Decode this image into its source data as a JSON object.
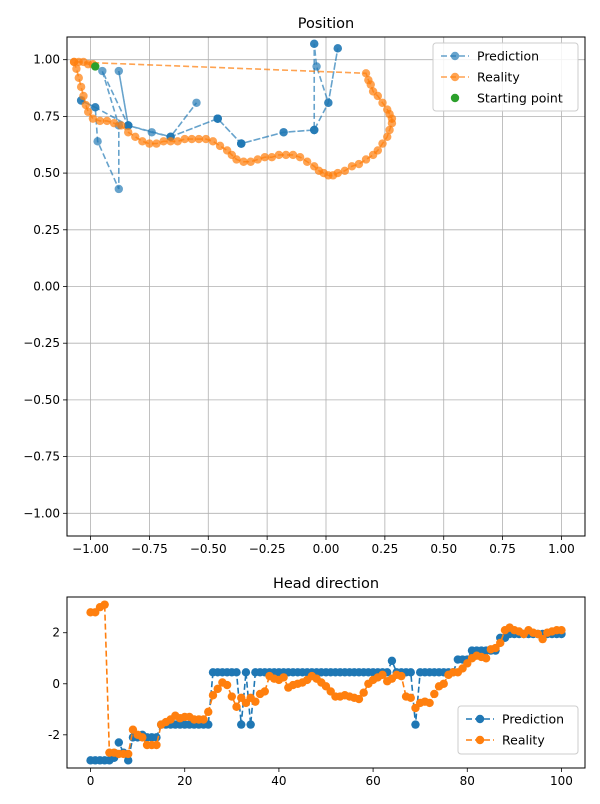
{
  "chart_data": [
    {
      "type": "line",
      "title": "Position",
      "xlim": [
        -1.1,
        1.1
      ],
      "ylim": [
        -1.1,
        1.1
      ],
      "xticks": [
        "−1.00",
        "−0.75",
        "−0.50",
        "−0.25",
        "0.00",
        "0.25",
        "0.50",
        "0.75",
        "1.00"
      ],
      "yticks": [
        "−1.00",
        "−0.75",
        "−0.50",
        "−0.25",
        "0.00",
        "0.25",
        "0.50",
        "0.75",
        "1.00"
      ],
      "grid": true,
      "legend_position": "top-right",
      "colors": {
        "prediction": "#1f77b4",
        "reality": "#ff7f0e",
        "start": "#2ca02c"
      },
      "series": [
        {
          "name": "Prediction",
          "style": "dashed-markers",
          "x": [
            -1.04,
            -0.98,
            -0.97,
            -0.88,
            -0.88,
            -0.95,
            -0.84,
            -0.88,
            -0.84,
            -0.74,
            -0.66,
            -0.55,
            -0.66,
            -0.46,
            -0.46,
            -0.36,
            -0.36,
            -0.18,
            -0.05,
            -0.05,
            -0.05,
            -0.04,
            0.01,
            0.05,
            0.05,
            0.01,
            -0.05,
            -0.05,
            -0.18,
            -0.36,
            -0.36,
            -0.46,
            -0.46,
            -0.66,
            -0.84,
            -0.84,
            -0.98,
            -1.04
          ],
          "y": [
            0.82,
            0.79,
            0.64,
            0.43,
            0.71,
            0.95,
            0.71,
            0.95,
            0.71,
            0.68,
            0.66,
            0.81,
            0.66,
            0.74,
            0.74,
            0.63,
            0.63,
            0.68,
            0.69,
            1.07,
            1.07,
            0.97,
            0.81,
            1.05,
            1.05,
            0.81,
            0.69,
            0.69,
            0.68,
            0.63,
            0.63,
            0.74,
            0.74,
            0.66,
            0.71,
            0.71,
            0.79,
            0.82
          ]
        },
        {
          "name": "Reality",
          "style": "dashed-markers",
          "x": [
            -1.07,
            -1.06,
            -1.05,
            -1.04,
            -1.03,
            -1.02,
            -1.01,
            -0.99,
            -0.96,
            -0.93,
            -0.9,
            -0.87,
            -0.84,
            -0.81,
            -0.78,
            -0.75,
            -0.72,
            -0.69,
            -0.66,
            -0.63,
            -0.6,
            -0.57,
            -0.54,
            -0.51,
            -0.48,
            -0.45,
            -0.42,
            -0.4,
            -0.38,
            -0.35,
            -0.32,
            -0.29,
            -0.26,
            -0.23,
            -0.2,
            -0.17,
            -0.14,
            -0.11,
            -0.08,
            -0.05,
            -0.03,
            -0.01,
            0.01,
            0.03,
            0.05,
            0.08,
            0.11,
            0.14,
            0.17,
            0.2,
            0.22,
            0.24,
            0.26,
            0.27,
            0.28,
            0.28,
            0.27,
            0.26,
            0.24,
            0.22,
            0.2,
            0.19,
            0.18,
            0.17,
            -1.07,
            -1.05,
            -1.03,
            -1.01,
            -0.99
          ],
          "y": [
            0.99,
            0.96,
            0.92,
            0.88,
            0.84,
            0.8,
            0.77,
            0.74,
            0.73,
            0.73,
            0.72,
            0.71,
            0.68,
            0.66,
            0.64,
            0.63,
            0.63,
            0.64,
            0.64,
            0.64,
            0.65,
            0.65,
            0.65,
            0.65,
            0.64,
            0.62,
            0.6,
            0.58,
            0.56,
            0.55,
            0.55,
            0.56,
            0.57,
            0.57,
            0.58,
            0.58,
            0.58,
            0.57,
            0.55,
            0.53,
            0.51,
            0.5,
            0.49,
            0.49,
            0.5,
            0.51,
            0.53,
            0.54,
            0.56,
            0.58,
            0.6,
            0.63,
            0.66,
            0.69,
            0.72,
            0.74,
            0.76,
            0.78,
            0.81,
            0.84,
            0.86,
            0.89,
            0.91,
            0.94,
            0.99,
            0.99,
            0.99,
            0.98,
            0.98
          ]
        },
        {
          "name": "Starting point",
          "style": "marker",
          "x": [
            -0.98
          ],
          "y": [
            0.97
          ]
        }
      ]
    },
    {
      "type": "line",
      "title": "Head direction",
      "xlim": [
        -5,
        105
      ],
      "ylim": [
        -3.3,
        3.4
      ],
      "xticks": [
        0,
        20,
        40,
        60,
        80,
        100
      ],
      "yticks": [
        -2,
        0,
        2
      ],
      "grid": false,
      "legend_position": "lower-right",
      "colors": {
        "prediction": "#1f77b4",
        "reality": "#ff7f0e"
      },
      "series": [
        {
          "name": "Prediction",
          "style": "dashed-markers",
          "values": [
            -3.0,
            -3.0,
            -3.0,
            -3.0,
            -3.0,
            -2.9,
            -2.3,
            -2.7,
            -3.0,
            -2.1,
            -2.1,
            -2.0,
            -2.1,
            -2.1,
            -2.1,
            -1.6,
            -1.6,
            -1.6,
            -1.6,
            -1.6,
            -1.6,
            -1.6,
            -1.6,
            -1.6,
            -1.6,
            -1.6,
            0.45,
            0.45,
            0.45,
            0.45,
            0.45,
            0.45,
            -1.6,
            0.45,
            -1.6,
            0.45,
            0.45,
            0.45,
            0.45,
            0.45,
            0.45,
            0.45,
            0.45,
            0.45,
            0.45,
            0.45,
            0.45,
            0.45,
            0.45,
            0.45,
            0.45,
            0.45,
            0.45,
            0.45,
            0.45,
            0.45,
            0.45,
            0.45,
            0.45,
            0.45,
            0.45,
            0.45,
            0.45,
            0.45,
            0.9,
            0.45,
            0.45,
            0.45,
            0.45,
            -1.6,
            0.45,
            0.45,
            0.45,
            0.45,
            0.45,
            0.45,
            0.45,
            0.45,
            0.95,
            0.95,
            0.95,
            1.3,
            1.3,
            1.3,
            1.3,
            1.3,
            1.3,
            1.8,
            1.8,
            1.95,
            1.95,
            1.95,
            1.95,
            1.95,
            1.95,
            1.95,
            1.95,
            1.95,
            1.95,
            1.95,
            1.95
          ]
        },
        {
          "name": "Reality",
          "style": "dashed-markers",
          "values": [
            2.8,
            2.8,
            3.0,
            3.1,
            -2.7,
            -2.7,
            -2.75,
            -2.75,
            -2.75,
            -1.8,
            -2.0,
            -2.1,
            -2.4,
            -2.4,
            -2.4,
            -1.6,
            -1.5,
            -1.4,
            -1.25,
            -1.35,
            -1.3,
            -1.3,
            -1.4,
            -1.4,
            -1.4,
            -1.1,
            -0.45,
            -0.2,
            0.05,
            -0.05,
            -0.5,
            -0.9,
            -0.55,
            -0.75,
            -0.55,
            -0.7,
            -0.4,
            -0.3,
            0.3,
            0.2,
            0.15,
            0.25,
            -0.15,
            -0.05,
            0.0,
            0.05,
            0.15,
            0.3,
            0.2,
            0.05,
            -0.1,
            -0.3,
            -0.5,
            -0.5,
            -0.45,
            -0.5,
            -0.55,
            -0.6,
            -0.35,
            0.0,
            0.15,
            0.25,
            0.35,
            0.1,
            0.2,
            0.35,
            0.3,
            -0.5,
            -0.55,
            -0.95,
            -0.75,
            -0.7,
            -0.75,
            -0.4,
            -0.1,
            0.0,
            0.35,
            0.45,
            0.45,
            0.6,
            0.8,
            1.0,
            1.1,
            1.05,
            1.0,
            1.35,
            1.4,
            1.6,
            2.1,
            2.2,
            2.1,
            2.05,
            1.95,
            2.1,
            2.0,
            1.95,
            1.75,
            2.0,
            2.05,
            2.1,
            2.1
          ]
        }
      ]
    }
  ]
}
